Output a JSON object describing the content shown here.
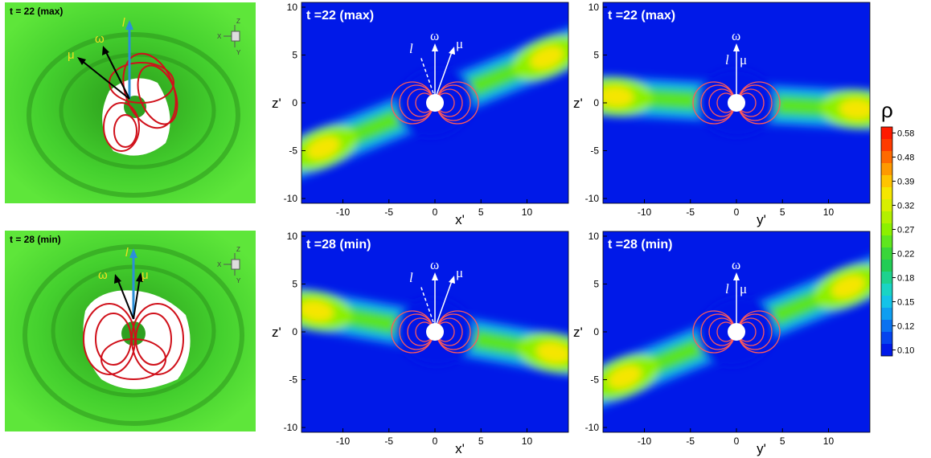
{
  "panels_3d": [
    {
      "title": "t = 22 (max)",
      "axis_letters": [
        "Z",
        "X",
        "Y"
      ],
      "vector_labels": {
        "l": "l",
        "omega": "ω",
        "mu": "μ"
      }
    },
    {
      "title": "t = 28 (min)",
      "axis_letters": [
        "Z",
        "X",
        "Y"
      ],
      "vector_labels": {
        "l": "l",
        "omega": "ω",
        "mu": "μ"
      }
    }
  ],
  "colorbar": {
    "label": "ρ",
    "levels": [
      "0.58",
      "0.53",
      "0.48",
      "0.44",
      "0.39",
      "0.35",
      "0.32",
      "0.29",
      "0.27",
      "0.24",
      "0.22",
      "0.20",
      "0.18",
      "0.16",
      "0.15",
      "0.14",
      "0.12",
      "0.11",
      "0.10"
    ],
    "tick_labels": [
      "0.58",
      "0.48",
      "0.39",
      "0.32",
      "0.27",
      "0.22",
      "0.18",
      "0.15",
      "0.12",
      "0.10"
    ],
    "colors": [
      "#ff1a00",
      "#ff3b00",
      "#ff6a00",
      "#ff9900",
      "#ffc400",
      "#f5e600",
      "#d8ef00",
      "#b3f000",
      "#8cf000",
      "#5fe61e",
      "#39d639",
      "#22cc55",
      "#1ed28e",
      "#1ad4c4",
      "#14c3e8",
      "#0f9ef0",
      "#0a72f0",
      "#0544ee",
      "#0019e8"
    ],
    "background": "#0019e8"
  },
  "chart_data": [
    {
      "type": "heatmap",
      "title": "t =22 (max)",
      "xlabel": "x'",
      "ylabel": "z'",
      "xlim": [
        -14.5,
        14.5
      ],
      "ylim": [
        -10.5,
        10.5
      ],
      "x_ticks": [
        "-10",
        "-5",
        "0",
        "5",
        "10"
      ],
      "y_ticks": [
        "10",
        "5",
        "0",
        "-5",
        "-10"
      ],
      "vector_labels": {
        "l": "l",
        "omega": "ω",
        "mu": "μ"
      },
      "disk_tilt_deg": 22
    },
    {
      "type": "heatmap",
      "title": "t =22 (max)",
      "xlabel": "y'",
      "ylabel": "z'",
      "xlim": [
        -14.5,
        14.5
      ],
      "ylim": [
        -10.5,
        10.5
      ],
      "x_ticks": [
        "-10",
        "-5",
        "0",
        "5",
        "10"
      ],
      "y_ticks": [
        "10",
        "5",
        "0",
        "-5",
        "-10"
      ],
      "vector_labels": {
        "l": "l",
        "omega": "ω",
        "mu": "μ"
      },
      "disk_tilt_deg": -3
    },
    {
      "type": "heatmap",
      "title": "t =28 (min)",
      "xlabel": "x'",
      "ylabel": "z'",
      "xlim": [
        -14.5,
        14.5
      ],
      "ylim": [
        -10.5,
        10.5
      ],
      "x_ticks": [
        "-10",
        "-5",
        "0",
        "5",
        "10"
      ],
      "y_ticks": [
        "10",
        "5",
        "0",
        "-5",
        "-10"
      ],
      "vector_labels": {
        "l": "l",
        "omega": "ω",
        "mu": "μ"
      },
      "disk_tilt_deg": -10
    },
    {
      "type": "heatmap",
      "title": "t =28 (min)",
      "xlabel": "y'",
      "ylabel": "z'",
      "xlim": [
        -14.5,
        14.5
      ],
      "ylim": [
        -10.5,
        10.5
      ],
      "x_ticks": [
        "-10",
        "-5",
        "0",
        "5",
        "10"
      ],
      "y_ticks": [
        "10",
        "5",
        "0",
        "-5",
        "-10"
      ],
      "vector_labels": {
        "l": "l",
        "omega": "ω",
        "mu": "μ"
      },
      "disk_tilt_deg": 22
    }
  ]
}
